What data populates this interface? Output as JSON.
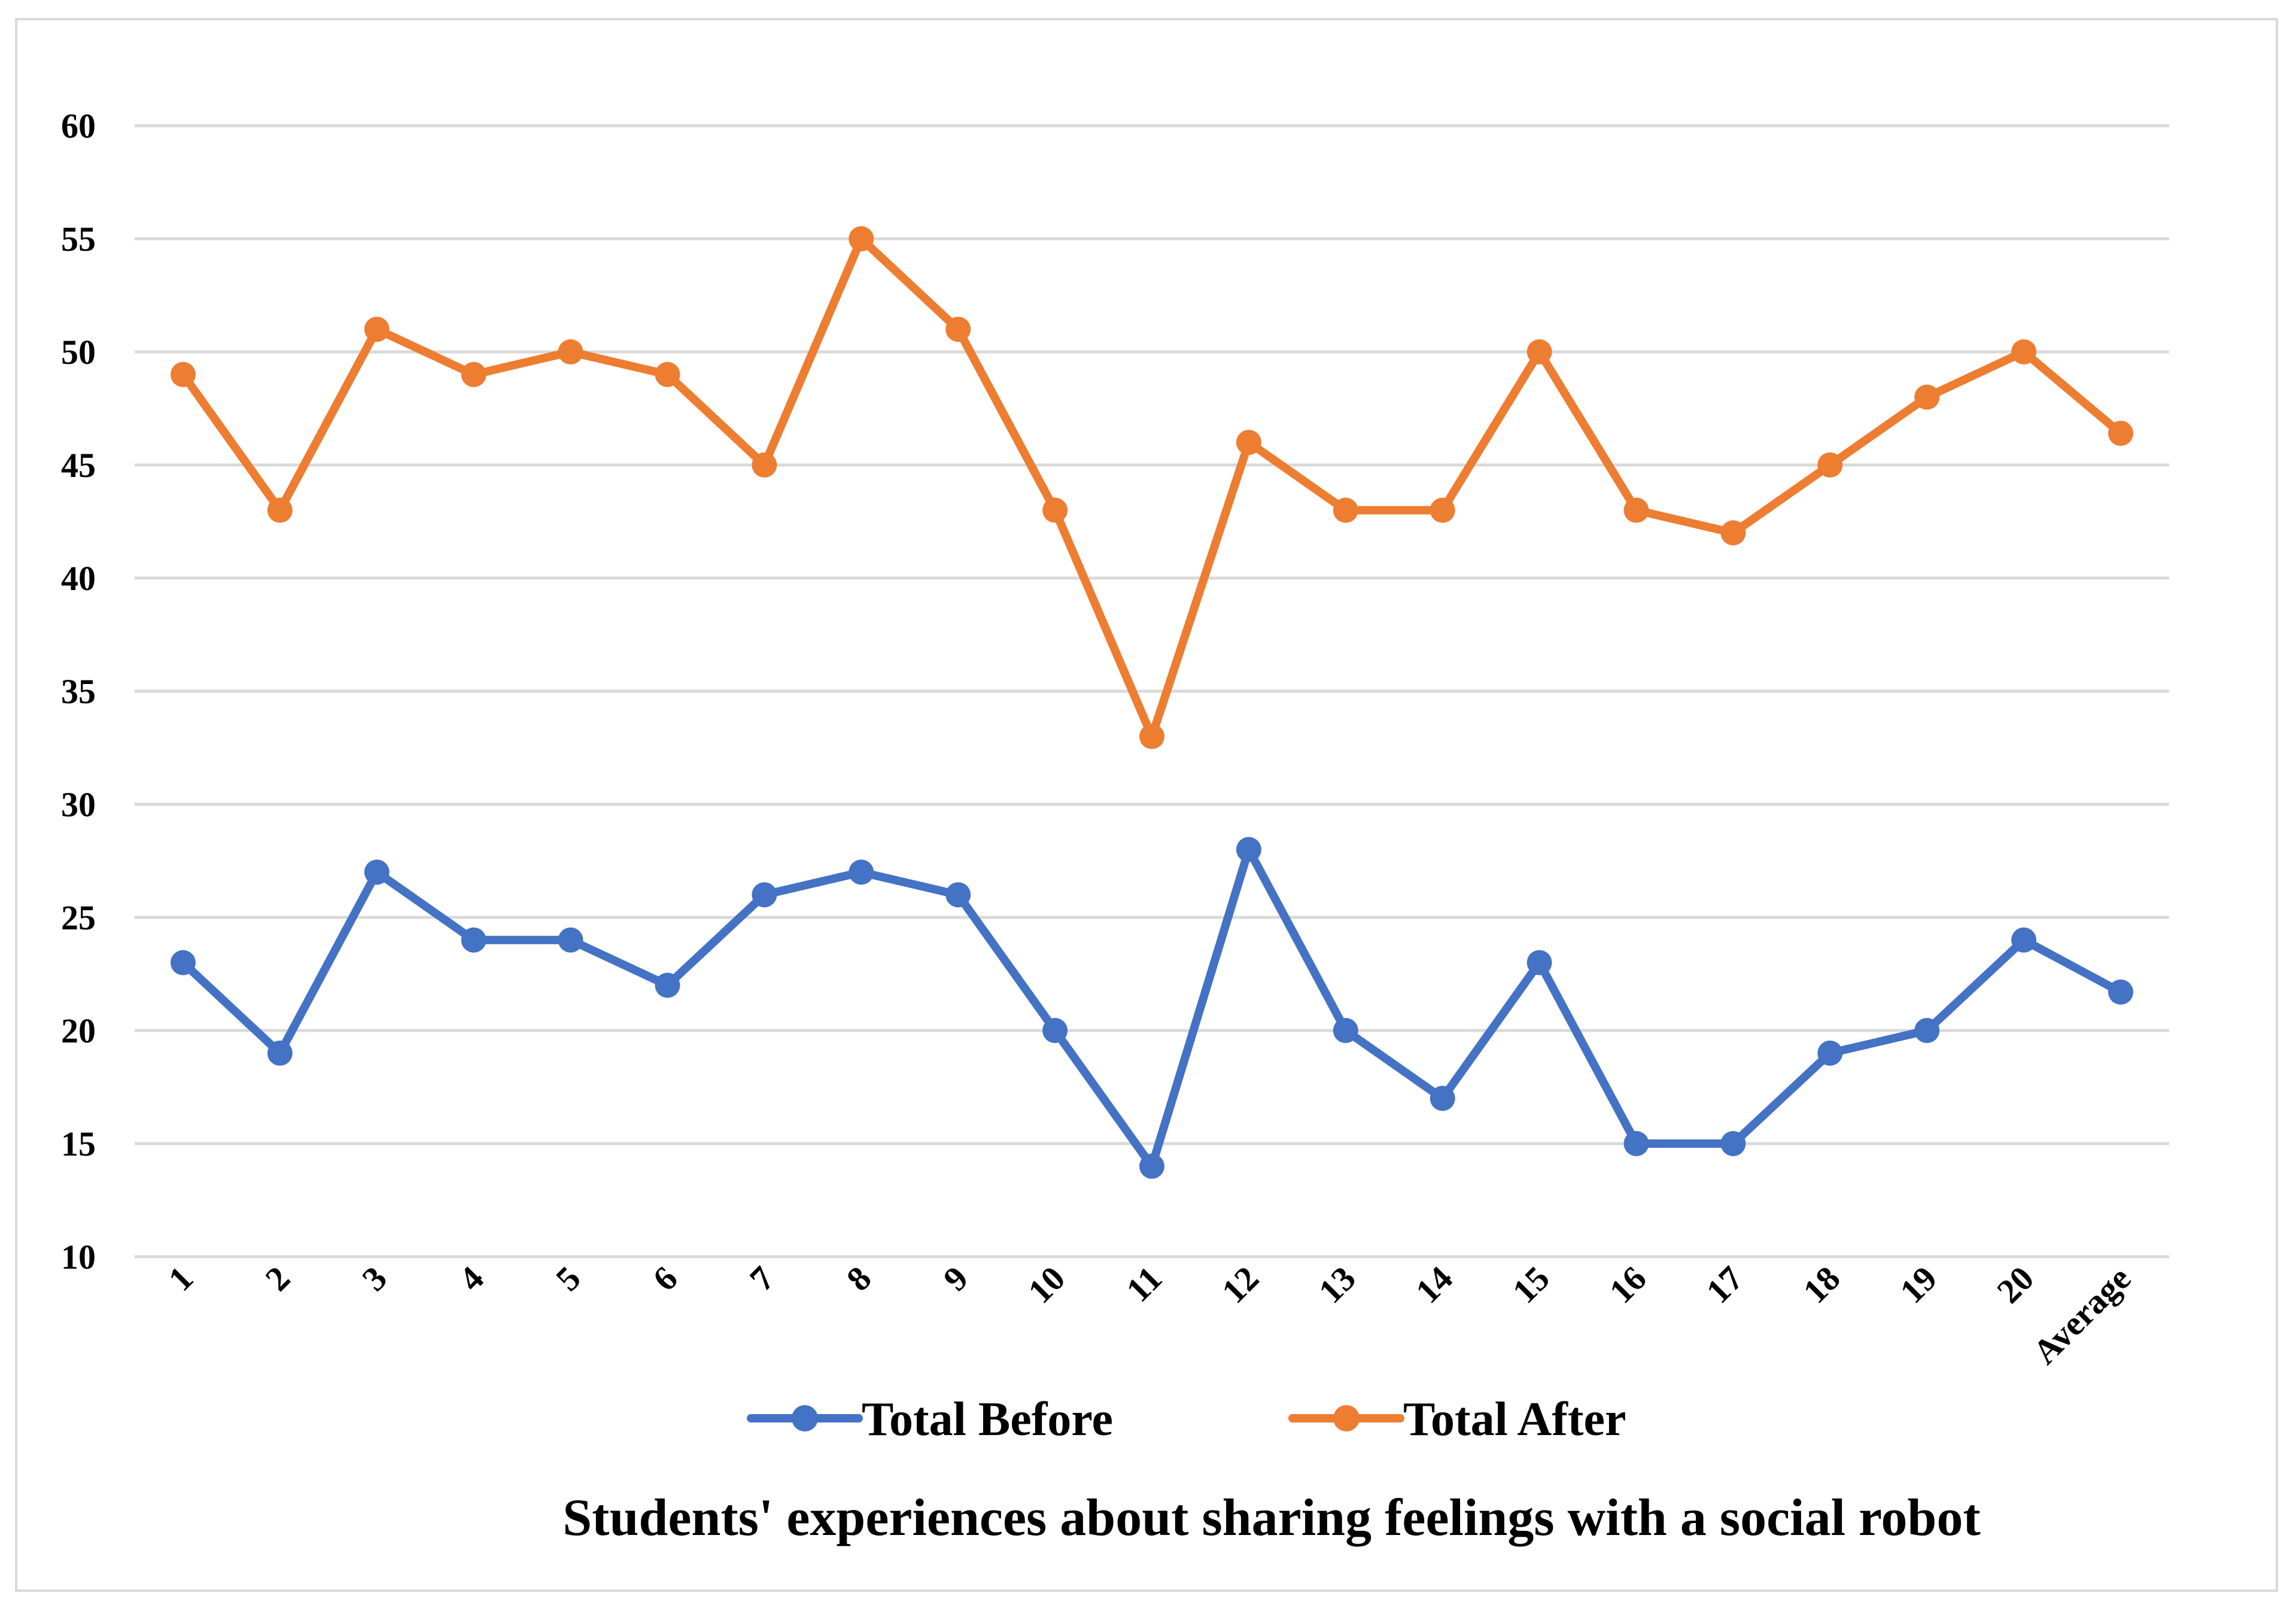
{
  "chart_data": {
    "type": "line",
    "title": "Students' experiences about sharing feelings with a social robot",
    "xlabel": "",
    "ylabel": "",
    "ylim": [
      10,
      60
    ],
    "yticks": [
      10,
      15,
      20,
      25,
      30,
      35,
      40,
      45,
      50,
      55,
      60
    ],
    "grid": true,
    "legend_position": "bottom",
    "categories": [
      "1",
      "2",
      "3",
      "4",
      "5",
      "6",
      "7",
      "8",
      "9",
      "10",
      "11",
      "12",
      "13",
      "14",
      "15",
      "16",
      "17",
      "18",
      "19",
      "20",
      "Average"
    ],
    "series": [
      {
        "name": "Total Before",
        "color": "#4472c4",
        "values": [
          23,
          19,
          27,
          24,
          24,
          22,
          26,
          27,
          26,
          20,
          14,
          28,
          20,
          17,
          23,
          15,
          15,
          19,
          20,
          24,
          21.7
        ]
      },
      {
        "name": "Total After",
        "color": "#ed7d31",
        "values": [
          49,
          43,
          51,
          49,
          50,
          49,
          45,
          55,
          51,
          43,
          33,
          46,
          43,
          43,
          50,
          43,
          42,
          45,
          48,
          50,
          46.4
        ]
      }
    ]
  }
}
